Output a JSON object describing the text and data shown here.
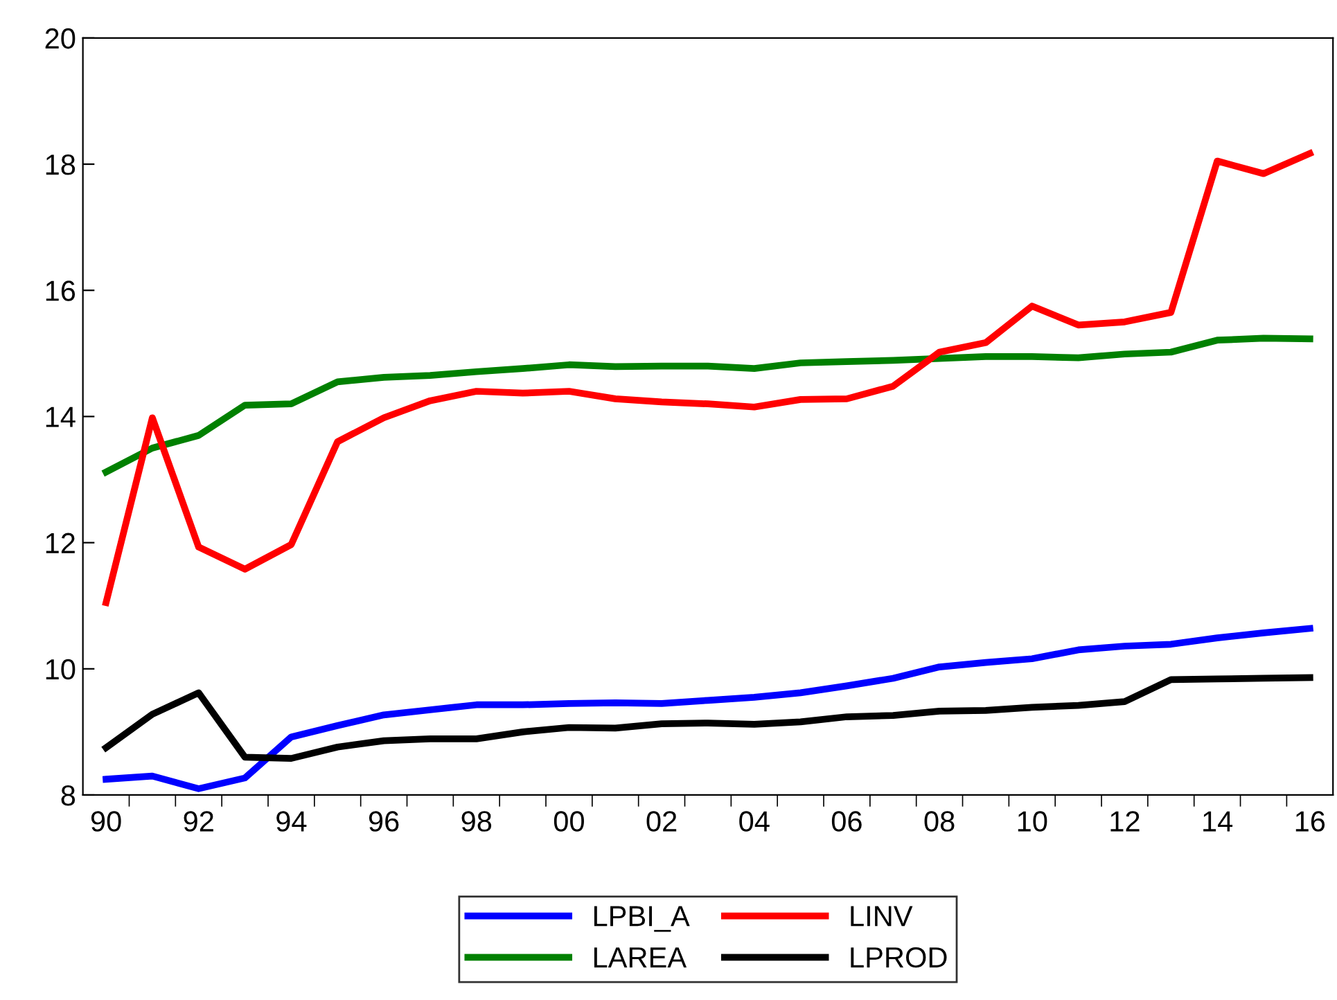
{
  "chart_data": {
    "type": "line",
    "categories": [
      "90",
      null,
      "92",
      null,
      "94",
      null,
      "96",
      null,
      "98",
      null,
      "00",
      null,
      "02",
      null,
      "04",
      null,
      "06",
      null,
      "08",
      null,
      "10",
      null,
      "12",
      null,
      "14",
      null,
      "16"
    ],
    "series": [
      {
        "name": "LPBI_A",
        "color": "#0000ff",
        "values": [
          8.25,
          8.3,
          8.1,
          8.27,
          8.92,
          9.1,
          9.27,
          9.35,
          9.43,
          9.43,
          9.45,
          9.46,
          9.45,
          9.5,
          9.55,
          9.62,
          9.73,
          9.85,
          10.03,
          10.1,
          10.16,
          10.3,
          10.36,
          10.39,
          10.49,
          10.57,
          10.64
        ]
      },
      {
        "name": "LAREA",
        "color": "#008000",
        "values": [
          13.12,
          13.5,
          13.7,
          14.18,
          14.2,
          14.55,
          14.62,
          14.65,
          14.71,
          14.76,
          14.82,
          14.79,
          14.8,
          14.8,
          14.76,
          14.85,
          14.87,
          14.89,
          14.92,
          14.95,
          14.95,
          14.93,
          14.99,
          15.02,
          15.21,
          15.24,
          15.23
        ]
      },
      {
        "name": "LINV",
        "color": "#ff0000",
        "values": [
          11.05,
          13.98,
          11.93,
          11.58,
          11.97,
          13.6,
          13.98,
          14.25,
          14.4,
          14.37,
          14.4,
          14.28,
          14.23,
          14.2,
          14.15,
          14.27,
          14.28,
          14.48,
          15.02,
          15.17,
          15.75,
          15.45,
          15.5,
          15.65,
          18.05,
          17.85,
          18.17
        ]
      },
      {
        "name": "LPROD",
        "color": "#000000",
        "values": [
          8.75,
          9.28,
          9.62,
          8.6,
          8.58,
          8.76,
          8.86,
          8.89,
          8.89,
          9.0,
          9.07,
          9.06,
          9.13,
          9.14,
          9.12,
          9.16,
          9.24,
          9.26,
          9.33,
          9.34,
          9.39,
          9.42,
          9.48,
          9.83,
          9.84,
          9.85,
          9.86
        ]
      }
    ],
    "ylim": [
      8,
      20
    ],
    "yticks": [
      8,
      10,
      12,
      14,
      16,
      18,
      20
    ],
    "grid": false,
    "legend": "bottom",
    "marker": "none",
    "line_style": "solid"
  }
}
